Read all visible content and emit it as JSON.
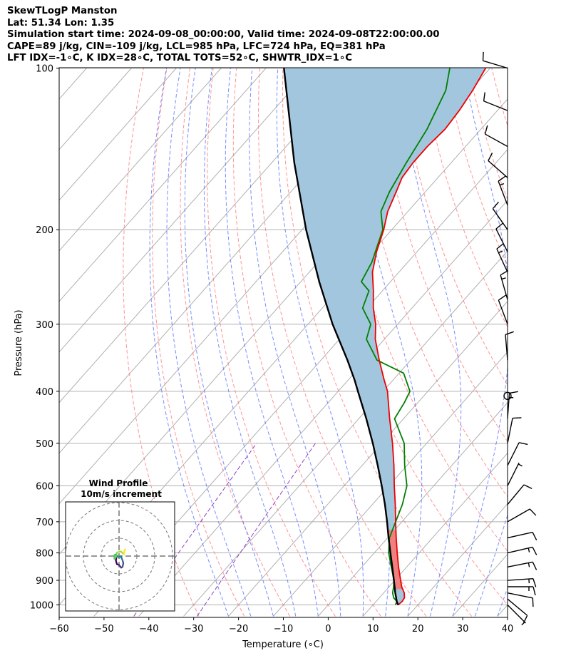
{
  "header": {
    "line1": "SkewTLogP Manston",
    "line2": "Lat: 51.34   Lon: 1.35",
    "line3": "Simulation start time: 2024-09-08_00:00:00, Valid time: 2024-09-08T22:00:00.00",
    "line4": "CAPE=89 j/kg, CIN=-109 j/kg, LCL=985 hPa, LFC=724 hPa, EQ=381 hPa",
    "line5": "LFT IDX=-1$^\\circ$C, K IDX=28$^\\circ$C, TOTAL TOTS=52$^\\circ$C, SHWTR_IDX=1$^\\circ$C"
  },
  "header_display": {
    "line5": "LFT IDX=-1∘C, K IDX=28∘C, TOTAL TOTS=52∘C, SHWTR_IDX=1∘C"
  },
  "chart_data": {
    "type": "line",
    "xlabel": "Temperature (∘C)",
    "ylabel": "Pressure (hPa)",
    "xlim": [
      -60,
      40
    ],
    "ylim": [
      1050,
      100
    ],
    "y_scale": "log",
    "skew": true,
    "grid": true,
    "x_ticks": [
      "−60",
      "−50",
      "−40",
      "−30",
      "−20",
      "−10",
      "0",
      "10",
      "20",
      "30",
      "40"
    ],
    "y_ticks": [
      "1000",
      "900",
      "800",
      "700",
      "600",
      "500",
      "400",
      "300",
      "200",
      "100"
    ],
    "colors": {
      "temperature": "#ee0000",
      "dewpoint": "#008000",
      "parcel": "#000000",
      "cape_fill": "#a3c6df",
      "cin_fill": "#f08080",
      "dry_adiabat": "#ff7070",
      "moist_adiabat": "#5570ff",
      "mixing_ratio": "#9040c0",
      "isotherm": "#b0b0b0"
    },
    "series": [
      {
        "key": "temperature",
        "pressure": [
          1000,
          985,
          970,
          950,
          925,
          900,
          850,
          800,
          750,
          700,
          650,
          600,
          550,
          500,
          450,
          400,
          381,
          350,
          320,
          300,
          280,
          260,
          240,
          220,
          200,
          185,
          170,
          160,
          150,
          140,
          130,
          120,
          110,
          100
        ],
        "temperature_C": [
          15.6,
          15.8,
          15.6,
          14.6,
          12.8,
          11.3,
          8.2,
          5.1,
          1.9,
          -1.4,
          -4.9,
          -8.8,
          -12.9,
          -17.6,
          -23.1,
          -29.0,
          -32.0,
          -37.0,
          -42.0,
          -44.9,
          -48.6,
          -52.0,
          -55.9,
          -59.0,
          -61.8,
          -64.5,
          -66.5,
          -68.0,
          -68.5,
          -68.5,
          -68.0,
          -68.5,
          -69.5,
          -71.0
        ]
      },
      {
        "key": "dewpoint",
        "pressure": [
          1000,
          985,
          970,
          950,
          925,
          900,
          850,
          800,
          750,
          700,
          650,
          600,
          550,
          500,
          450,
          420,
          400,
          370,
          350,
          320,
          300,
          280,
          260,
          250,
          230,
          200,
          185,
          170,
          150,
          130,
          110,
          100
        ],
        "temperature_C": [
          15.0,
          14.6,
          13.2,
          12.0,
          11.0,
          9.8,
          6.6,
          3.2,
          0.4,
          -1.4,
          -3.3,
          -6.0,
          -10.5,
          -15.0,
          -22.0,
          -23.0,
          -24.0,
          -29.0,
          -37.5,
          -44.0,
          -46.0,
          -51.0,
          -53.0,
          -56.5,
          -58.0,
          -62.0,
          -66.0,
          -68.0,
          -70.0,
          -72.0,
          -75.5,
          -79.0
        ]
      },
      {
        "key": "parcel",
        "pressure": [
          1000,
          985,
          950,
          900,
          850,
          800,
          750,
          724,
          700,
          650,
          600,
          550,
          500,
          450,
          400,
          381,
          350,
          300,
          250,
          200,
          150,
          100
        ],
        "temperature_C": [
          15.6,
          14.6,
          12.6,
          9.8,
          6.8,
          3.6,
          0.2,
          -1.6,
          -3.3,
          -7.2,
          -11.6,
          -16.5,
          -22.0,
          -28.3,
          -35.6,
          -38.6,
          -44.1,
          -54.5,
          -65.9,
          -79.1,
          -95.0,
          -116.0
        ]
      }
    ],
    "wind_barbs": {
      "pressure": [
        1000,
        975,
        950,
        925,
        900,
        850,
        800,
        750,
        700,
        650,
        600,
        550,
        500,
        450,
        400,
        350,
        300,
        270,
        240,
        220,
        200,
        180,
        160,
        140,
        120,
        100
      ],
      "u_kt": [
        -4,
        -6,
        -10,
        -13,
        -15,
        -15,
        -13,
        -9,
        -7,
        -5,
        -3,
        -4,
        -2,
        -1,
        0,
        1,
        3,
        4,
        6,
        5,
        7,
        5,
        8,
        9,
        10,
        10
      ],
      "v_kt": [
        4,
        5,
        2,
        0,
        -1,
        -3,
        -3,
        -2,
        -4,
        -6,
        -6,
        -8,
        -10,
        -14,
        0,
        -12,
        -8,
        -14,
        -13,
        -10,
        -10,
        -13,
        -7,
        -5,
        -4,
        -3
      ],
      "calm_pressure": 408
    },
    "hodograph": {
      "title": "Wind Profile",
      "subtitle": "10m/s increment",
      "u_ms": [
        -1.5,
        -1.8,
        -1.2,
        0.0,
        1.2,
        2.0,
        2.4,
        2.0,
        1.4,
        1.0,
        0.6,
        -0.6,
        -1.4,
        -2.2,
        -2.8,
        -2.6,
        -2.0,
        -1.2,
        1.0,
        2.8,
        3.0,
        3.5
      ],
      "v_ms": [
        -1.0,
        -2.5,
        -4.5,
        -5.0,
        -6.5,
        -6.0,
        -4.0,
        -2.5,
        -1.0,
        0.0,
        -0.5,
        -0.5,
        0.5,
        0.8,
        0.3,
        -1.5,
        -1.0,
        2.0,
        2.6,
        1.0,
        3.0,
        3.8
      ]
    }
  }
}
